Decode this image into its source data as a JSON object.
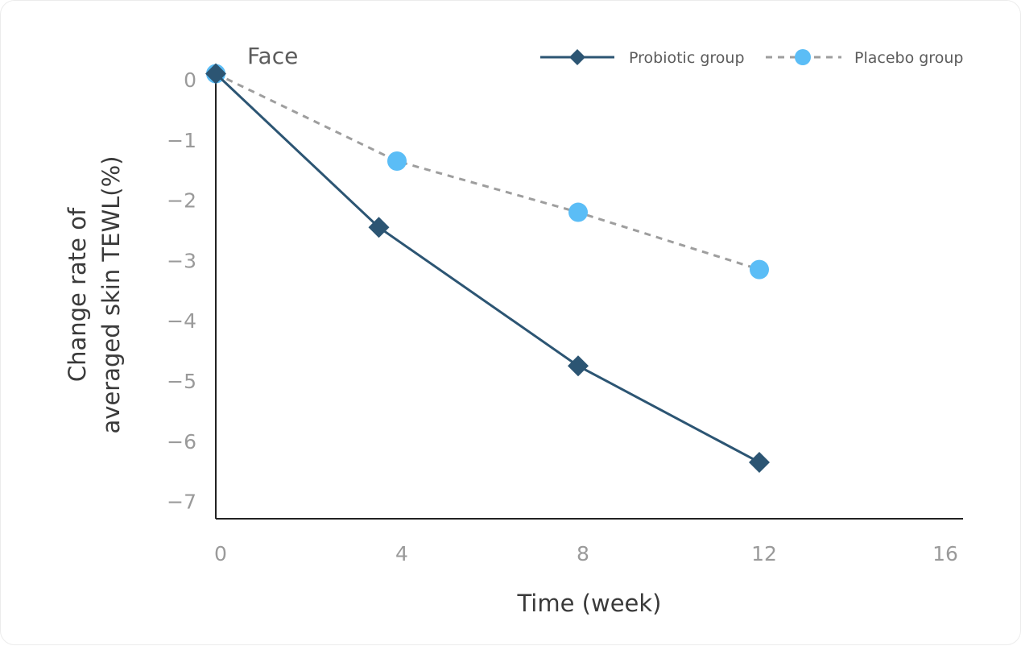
{
  "chart_data": {
    "type": "line",
    "title": "Face",
    "xlabel": "Time (week)",
    "ylabel_lines": [
      "Change rate of",
      "averaged skin TEWL(%)"
    ],
    "xlim": [
      0,
      16
    ],
    "ylim": [
      -7.3,
      0.2
    ],
    "x_ticks": [
      0,
      4,
      8,
      12,
      16
    ],
    "y_ticks": [
      0,
      -1,
      -2,
      -3,
      -4,
      -5,
      -6,
      -7
    ],
    "x_tick_labels": [
      "0",
      "4",
      "8",
      "12",
      "16"
    ],
    "y_tick_labels": [
      "0",
      "−1",
      "−2",
      "−3",
      "−4",
      "−5",
      "−6",
      "−7"
    ],
    "legend_position": "top-right",
    "grid": false,
    "series": [
      {
        "name": "Probiotic group",
        "color": "#2c5573",
        "line_style": "solid",
        "marker": "diamond",
        "x": [
          0,
          3.6,
          8,
          12
        ],
        "y": [
          0.1,
          -2.45,
          -4.75,
          -6.35
        ]
      },
      {
        "name": "Placebo group",
        "color": "#5bbdf6",
        "line_color": "#9e9e9e",
        "line_style": "dashed",
        "marker": "circle",
        "x": [
          0,
          4,
          8,
          12
        ],
        "y": [
          0.1,
          -1.35,
          -2.2,
          -3.15
        ]
      }
    ]
  }
}
